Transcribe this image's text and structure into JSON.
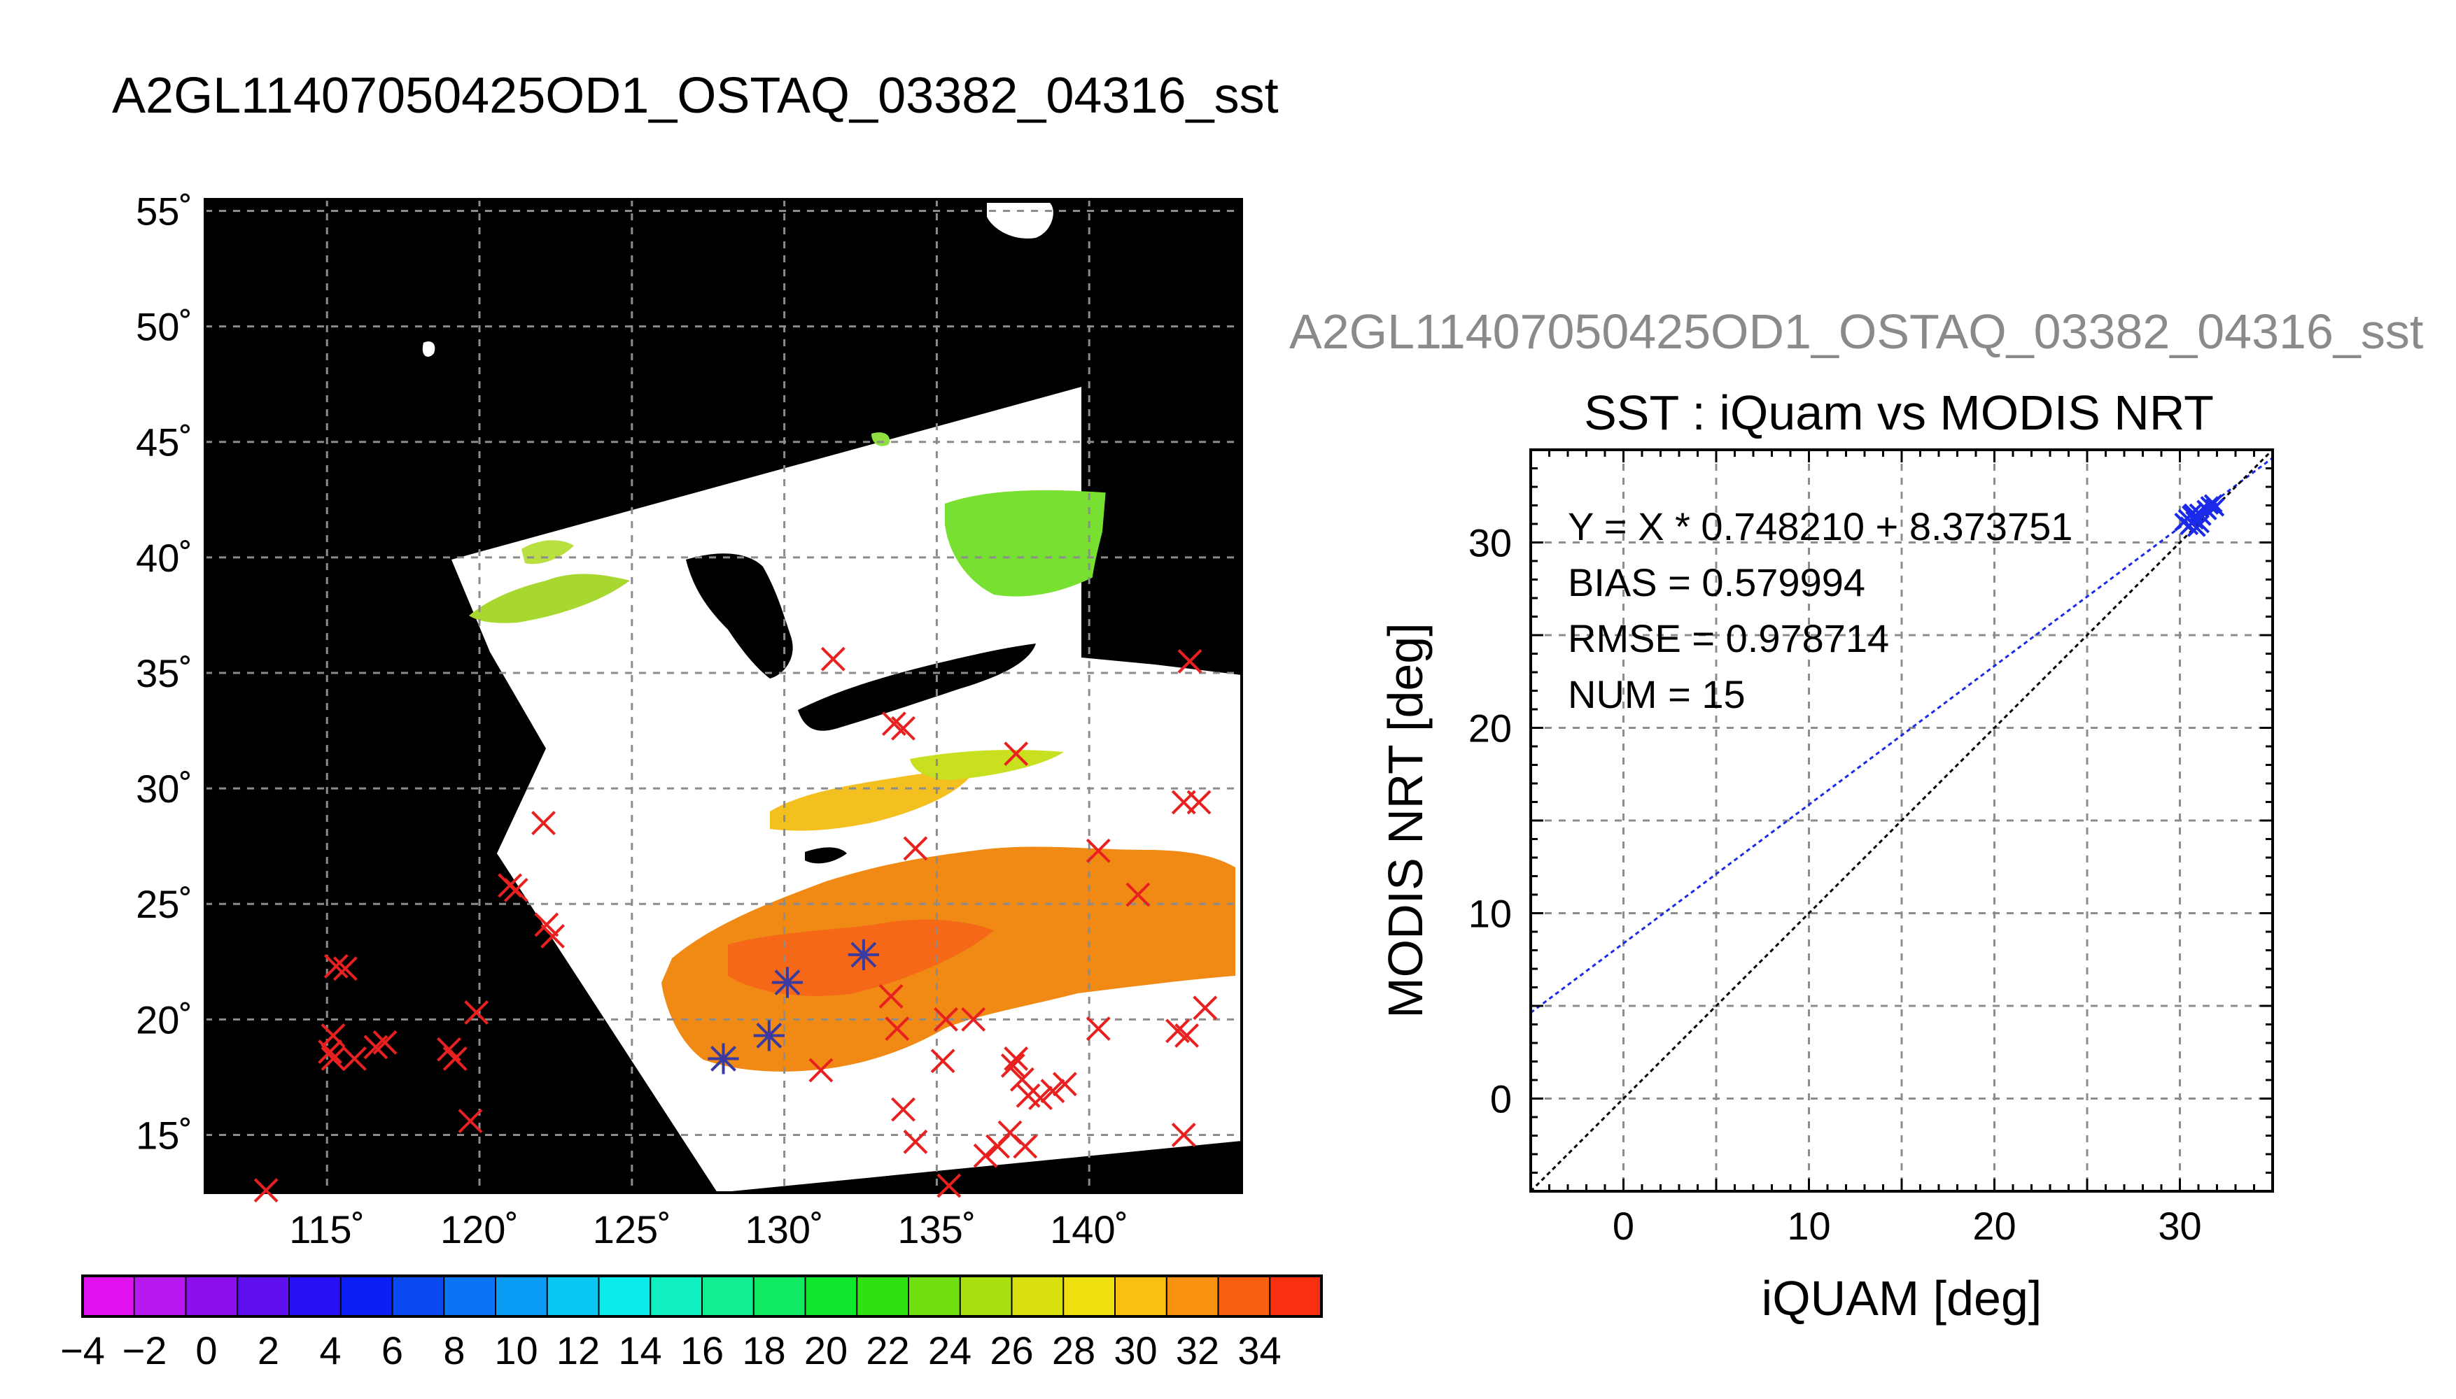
{
  "map_panel": {
    "title": "A2GL11407050425OD1_OSTAQ_03382_04316_sst",
    "lon_ticks": [
      "115˚",
      "120˚",
      "125˚",
      "130˚",
      "135˚",
      "140˚"
    ],
    "lat_ticks": [
      "55˚",
      "50˚",
      "45˚",
      "40˚",
      "35˚",
      "30˚",
      "25˚",
      "20˚",
      "15˚"
    ],
    "colorbar": {
      "labels": [
        "−4",
        "−2",
        "0",
        "2",
        "4",
        "6",
        "8",
        "10",
        "12",
        "14",
        "16",
        "18",
        "20",
        "22",
        "24",
        "26",
        "28",
        "30",
        "32",
        "34"
      ],
      "range": [
        -4,
        36
      ],
      "colors": [
        "#e010f0",
        "#b818f0",
        "#8c10ee",
        "#6010f0",
        "#2a10f5",
        "#0a20f5",
        "#0a48f0",
        "#0a74f5",
        "#0a9cf5",
        "#0ac6f5",
        "#0aecec",
        "#10f0c0",
        "#10ee90",
        "#10ea60",
        "#10e830",
        "#30e010",
        "#70e010",
        "#a8e010",
        "#d8e010",
        "#f0e010",
        "#f8c010",
        "#f89010",
        "#f86010",
        "#f83010"
      ]
    },
    "legend_colors": {
      "ocean_sst": "#f08a14",
      "land_mask": "#000000",
      "cloud": "#ffffff",
      "buoy_x": "#e82020",
      "matchup_star": "#3a3aa0"
    }
  },
  "scatter_panel": {
    "title_top": "A2GL11407050425OD1_OSTAQ_03382_04316_sst",
    "title": "SST : iQuam vs MODIS NRT",
    "xlabel": "iQUAM [deg]",
    "ylabel": "MODIS NRT [deg]",
    "stats": {
      "equation": "Y = X * 0.748210 + 8.373751",
      "bias": "BIAS = 0.579994",
      "rmse": "RMSE = 0.978714",
      "num": "NUM = 15"
    }
  },
  "chart_data": [
    {
      "type": "scatter",
      "title": "A2GL11407050425OD1_OSTAQ_03382_04316_sst",
      "xlim": [
        111,
        145
      ],
      "ylim": [
        12.5,
        55.5
      ],
      "x_ticks": [
        115,
        120,
        125,
        130,
        135,
        140
      ],
      "y_ticks": [
        55,
        50,
        45,
        40,
        35,
        30,
        25,
        20,
        15
      ],
      "grid": true,
      "series": [
        {
          "marker": "x",
          "color": "#e82020",
          "points": [
            [
              115.3,
              22.3
            ],
            [
              115.6,
              22.2
            ],
            [
              115.2,
              19.3
            ],
            [
              115.1,
              18.6
            ],
            [
              115.2,
              18.3
            ],
            [
              115.9,
              18.3
            ],
            [
              116.6,
              18.8
            ],
            [
              116.9,
              19.0
            ],
            [
              119.0,
              18.7
            ],
            [
              119.2,
              18.3
            ],
            [
              119.7,
              15.6
            ],
            [
              119.9,
              20.3
            ],
            [
              121.0,
              25.8
            ],
            [
              121.2,
              25.6
            ],
            [
              122.2,
              24.1
            ],
            [
              122.4,
              23.6
            ],
            [
              122.1,
              28.5
            ],
            [
              113.0,
              12.6
            ],
            [
              131.6,
              35.6
            ],
            [
              133.9,
              32.6
            ],
            [
              133.6,
              32.8
            ],
            [
              137.6,
              31.5
            ],
            [
              134.3,
              27.4
            ],
            [
              131.2,
              17.8
            ],
            [
              133.5,
              21.0
            ],
            [
              133.7,
              19.6
            ],
            [
              133.9,
              16.1
            ],
            [
              134.3,
              14.7
            ],
            [
              135.2,
              18.2
            ],
            [
              135.3,
              20.0
            ],
            [
              136.2,
              20.0
            ],
            [
              137.5,
              18.0
            ],
            [
              137.6,
              18.3
            ],
            [
              137.8,
              17.4
            ],
            [
              138.0,
              16.7
            ],
            [
              138.4,
              16.6
            ],
            [
              138.8,
              16.9
            ],
            [
              139.2,
              17.2
            ],
            [
              137.0,
              14.5
            ],
            [
              137.4,
              15.1
            ],
            [
              137.9,
              14.5
            ],
            [
              136.6,
              14.1
            ],
            [
              135.4,
              12.8
            ],
            [
              140.3,
              27.3
            ],
            [
              141.6,
              25.4
            ],
            [
              140.3,
              19.6
            ],
            [
              143.3,
              35.5
            ],
            [
              143.1,
              29.4
            ],
            [
              143.6,
              29.4
            ],
            [
              142.9,
              19.5
            ],
            [
              143.2,
              19.3
            ],
            [
              143.8,
              20.5
            ],
            [
              143.1,
              15.0
            ]
          ]
        },
        {
          "marker": "star",
          "color": "#3a3aa0",
          "points": [
            [
              128.0,
              18.3
            ],
            [
              129.5,
              19.3
            ],
            [
              130.1,
              21.6
            ],
            [
              132.6,
              22.8
            ]
          ]
        }
      ]
    },
    {
      "type": "scatter",
      "title": "SST : iQuam vs MODIS NRT",
      "xlabel": "iQUAM [deg]",
      "ylabel": "MODIS NRT [deg]",
      "xlim": [
        -5,
        35
      ],
      "ylim": [
        -5,
        35
      ],
      "x_ticks": [
        0,
        10,
        20,
        30
      ],
      "y_ticks": [
        0,
        10,
        20,
        30
      ],
      "grid": true,
      "series": [
        {
          "marker": "x",
          "color": "#1a2ae8",
          "points": [
            [
              30.2,
              31.1
            ],
            [
              30.4,
              31.3
            ],
            [
              30.5,
              30.9
            ],
            [
              30.6,
              31.5
            ],
            [
              30.8,
              31.2
            ],
            [
              30.9,
              30.8
            ],
            [
              31.0,
              31.6
            ],
            [
              31.2,
              31.4
            ],
            [
              31.4,
              31.8
            ],
            [
              31.5,
              31.7
            ],
            [
              31.6,
              32.0
            ],
            [
              31.8,
              32.1
            ],
            [
              31.9,
              31.9
            ],
            [
              30.7,
              31.6
            ],
            [
              31.1,
              31.0
            ]
          ]
        }
      ],
      "lines": [
        {
          "kind": "fit",
          "slope": 0.74821,
          "intercept": 8.373751,
          "color": "#1a2ae8"
        },
        {
          "kind": "one-to-one",
          "slope": 1,
          "intercept": 0,
          "color": "#000000"
        }
      ]
    }
  ]
}
